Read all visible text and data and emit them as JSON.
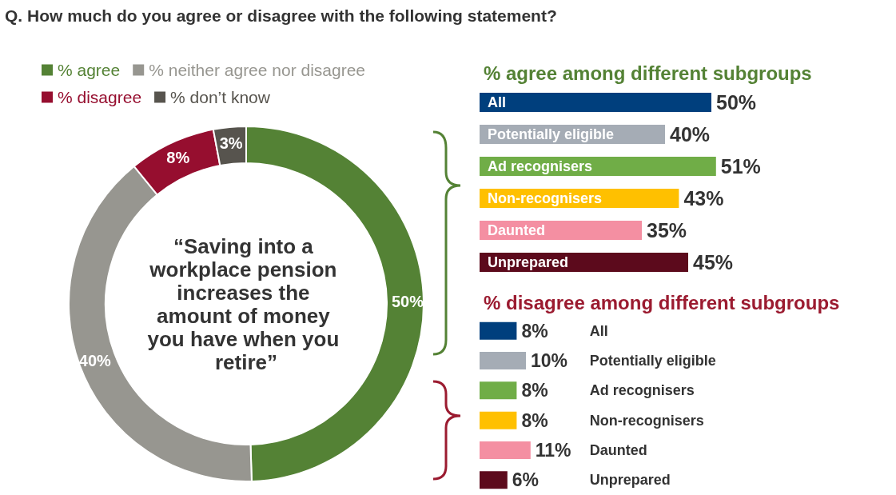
{
  "chart_data": [
    {
      "type": "donut",
      "title": "Q.  How much do you agree or disagree with the following statement?",
      "categories": [
        "% agree",
        "% neither agree nor disagree",
        "% disagree",
        "% don’t know"
      ],
      "values": [
        50,
        40,
        8,
        3
      ],
      "colors": [
        "#548235",
        "#979690",
        "#960e2f",
        "#57544e"
      ],
      "value_labels": [
        "50%",
        "40%",
        "8%",
        "3%"
      ],
      "legend": "top left",
      "annotations": [
        "“Saving into a workplace pension increases the amount of money you have when you retire”"
      ]
    },
    {
      "type": "bar",
      "orientation": "horizontal",
      "title": "% agree among different subgroups",
      "categories": [
        "All",
        "Potentially eligible",
        "Ad recognisers",
        "Non-recognisers",
        "Daunted",
        "Unprepared"
      ],
      "values": [
        50,
        40,
        51,
        43,
        35,
        45
      ],
      "colors": [
        "#003f7d",
        "#a5acb5",
        "#70ad47",
        "#ffc000",
        "#f48fa2",
        "#5c0a1c"
      ],
      "value_labels": [
        "50%",
        "40%",
        "51%",
        "43%",
        "35%",
        "45%"
      ]
    },
    {
      "type": "bar",
      "orientation": "horizontal",
      "title": "% disagree among different subgroups",
      "categories": [
        "All",
        "Potentially eligible",
        "Ad recognisers",
        "Non-recognisers",
        "Daunted",
        "Unprepared"
      ],
      "values": [
        8,
        10,
        8,
        8,
        11,
        6
      ],
      "colors": [
        "#003f7d",
        "#a5acb5",
        "#70ad47",
        "#ffc000",
        "#f48fa2",
        "#5c0a1c"
      ],
      "value_labels": [
        "8%",
        "10%",
        "8%",
        "8%",
        "11%",
        "6%"
      ]
    }
  ]
}
